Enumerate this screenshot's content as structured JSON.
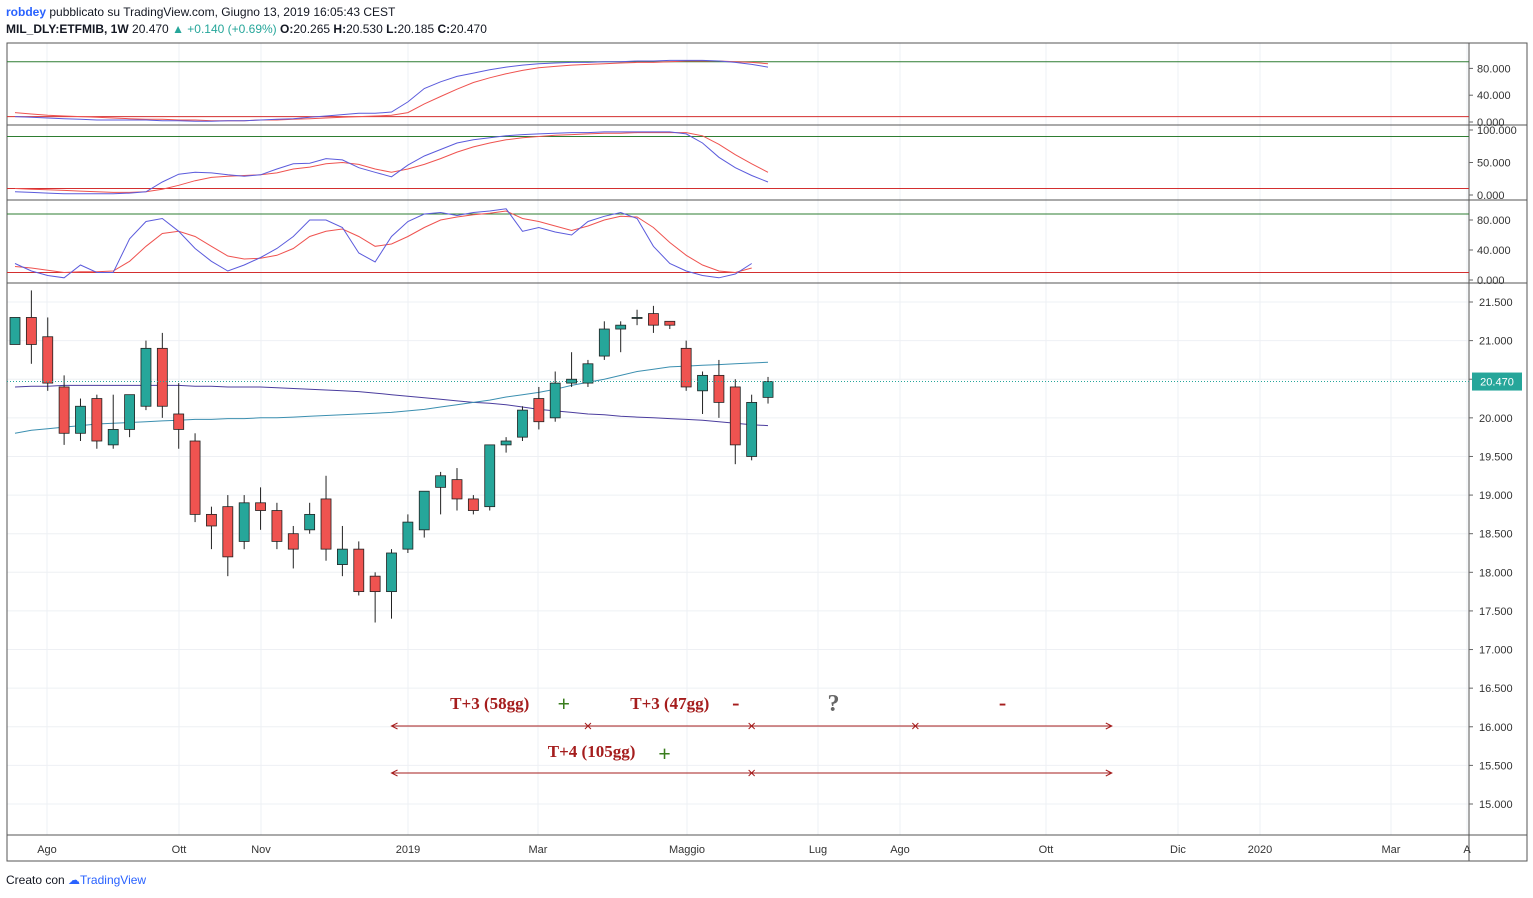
{
  "header": {
    "author": "robdey",
    "published": "pubblicato su TradingView.com, Giugno 13, 2019 16:05:43 CEST",
    "symbol": "MIL_DLY:ETFMIB, 1W",
    "last": "20.470",
    "change": "▲ +0.140 (+0.69%)",
    "open_label": "O:",
    "open": "20.265",
    "high_label": "H:",
    "high": "20.530",
    "low_label": "L:",
    "low": "20.185",
    "close_label": "C:",
    "close": "20.470"
  },
  "footer": {
    "created_with": "Creato con",
    "brand": "TradingView"
  },
  "colors": {
    "up": "#26a69a",
    "down": "#ef5350",
    "k_line": "#5b5bdc",
    "d_line": "#ef5350",
    "ma_long": "#4b3d9e",
    "ma_short": "#3b8fb0",
    "ob": "#2e7d32",
    "os": "#d32f2f",
    "annot": "#a51d1d",
    "plus": "#3a7d1e"
  },
  "chart_data": {
    "type": "candlestick",
    "interval": "1W",
    "x_ticks": [
      "Ago",
      "Ott",
      "Nov",
      "2019",
      "Mar",
      "Maggio",
      "Lug",
      "Ago",
      "Ott",
      "Dic",
      "2020",
      "Mar",
      "A"
    ],
    "price_axis": {
      "ylim": [
        14.6,
        21.9
      ],
      "ticks": [
        "21.500",
        "21.000",
        "20.500",
        "20.000",
        "19.500",
        "19.000",
        "18.500",
        "18.000",
        "17.500",
        "17.000",
        "16.500",
        "16.000",
        "15.500",
        "15.000"
      ],
      "last_price_label": "20.470"
    },
    "candles": [
      {
        "o": 20.95,
        "h": 21.3,
        "l": 20.95,
        "c": 21.3
      },
      {
        "o": 21.3,
        "h": 21.65,
        "l": 20.7,
        "c": 20.95
      },
      {
        "o": 21.05,
        "h": 21.3,
        "l": 20.35,
        "c": 20.45
      },
      {
        "o": 20.4,
        "h": 20.55,
        "l": 19.65,
        "c": 19.8
      },
      {
        "o": 19.8,
        "h": 20.25,
        "l": 19.7,
        "c": 20.15
      },
      {
        "o": 20.25,
        "h": 20.3,
        "l": 19.6,
        "c": 19.7
      },
      {
        "o": 19.65,
        "h": 20.3,
        "l": 19.6,
        "c": 19.85
      },
      {
        "o": 19.85,
        "h": 20.3,
        "l": 19.75,
        "c": 20.3
      },
      {
        "o": 20.15,
        "h": 21.0,
        "l": 20.1,
        "c": 20.9
      },
      {
        "o": 20.9,
        "h": 21.1,
        "l": 20.0,
        "c": 20.15
      },
      {
        "o": 20.05,
        "h": 20.45,
        "l": 19.6,
        "c": 19.85
      },
      {
        "o": 19.7,
        "h": 19.8,
        "l": 18.65,
        "c": 18.75
      },
      {
        "o": 18.75,
        "h": 18.85,
        "l": 18.3,
        "c": 18.6
      },
      {
        "o": 18.85,
        "h": 19.0,
        "l": 17.95,
        "c": 18.2
      },
      {
        "o": 18.4,
        "h": 19.0,
        "l": 18.3,
        "c": 18.9
      },
      {
        "o": 18.9,
        "h": 19.1,
        "l": 18.55,
        "c": 18.8
      },
      {
        "o": 18.8,
        "h": 18.9,
        "l": 18.3,
        "c": 18.4
      },
      {
        "o": 18.5,
        "h": 18.6,
        "l": 18.05,
        "c": 18.3
      },
      {
        "o": 18.55,
        "h": 18.9,
        "l": 18.5,
        "c": 18.75
      },
      {
        "o": 18.95,
        "h": 19.25,
        "l": 18.15,
        "c": 18.3
      },
      {
        "o": 18.1,
        "h": 18.6,
        "l": 17.95,
        "c": 18.3
      },
      {
        "o": 18.3,
        "h": 18.4,
        "l": 17.7,
        "c": 17.75
      },
      {
        "o": 17.95,
        "h": 18.0,
        "l": 17.35,
        "c": 17.75
      },
      {
        "o": 17.75,
        "h": 18.3,
        "l": 17.4,
        "c": 18.25
      },
      {
        "o": 18.3,
        "h": 18.75,
        "l": 18.25,
        "c": 18.65
      },
      {
        "o": 18.55,
        "h": 19.05,
        "l": 18.45,
        "c": 19.05
      },
      {
        "o": 19.1,
        "h": 19.3,
        "l": 18.75,
        "c": 19.25
      },
      {
        "o": 19.2,
        "h": 19.35,
        "l": 18.8,
        "c": 18.95
      },
      {
        "o": 18.95,
        "h": 19.0,
        "l": 18.75,
        "c": 18.8
      },
      {
        "o": 18.85,
        "h": 19.65,
        "l": 18.8,
        "c": 19.65
      },
      {
        "o": 19.65,
        "h": 19.75,
        "l": 19.55,
        "c": 19.7
      },
      {
        "o": 19.75,
        "h": 20.15,
        "l": 19.7,
        "c": 20.1
      },
      {
        "o": 20.25,
        "h": 20.4,
        "l": 19.85,
        "c": 19.95
      },
      {
        "o": 20.0,
        "h": 20.6,
        "l": 19.95,
        "c": 20.45
      },
      {
        "o": 20.45,
        "h": 20.85,
        "l": 20.4,
        "c": 20.5
      },
      {
        "o": 20.45,
        "h": 20.75,
        "l": 20.4,
        "c": 20.7
      },
      {
        "o": 20.8,
        "h": 21.25,
        "l": 20.75,
        "c": 21.15
      },
      {
        "o": 21.15,
        "h": 21.25,
        "l": 20.85,
        "c": 21.2
      },
      {
        "o": 21.3,
        "h": 21.4,
        "l": 21.2,
        "c": 21.3
      },
      {
        "o": 21.35,
        "h": 21.45,
        "l": 21.1,
        "c": 21.2
      },
      {
        "o": 21.25,
        "h": 21.25,
        "l": 21.15,
        "c": 21.2
      },
      {
        "o": 20.9,
        "h": 21.0,
        "l": 20.35,
        "c": 20.4
      },
      {
        "o": 20.35,
        "h": 20.6,
        "l": 20.05,
        "c": 20.55
      },
      {
        "o": 20.55,
        "h": 20.75,
        "l": 20.0,
        "c": 20.2
      },
      {
        "o": 20.4,
        "h": 20.5,
        "l": 19.4,
        "c": 19.65
      },
      {
        "o": 19.5,
        "h": 20.3,
        "l": 19.45,
        "c": 20.2
      },
      {
        "o": 20.265,
        "h": 20.53,
        "l": 20.185,
        "c": 20.47
      }
    ],
    "moving_averages": [
      {
        "values": [
          20.4,
          20.41,
          20.41,
          20.42,
          20.42,
          20.42,
          20.42,
          20.42,
          20.42,
          20.42,
          20.42,
          20.41,
          20.41,
          20.4,
          20.4,
          20.4,
          20.39,
          20.38,
          20.37,
          20.36,
          20.35,
          20.34,
          20.32,
          20.3,
          20.28,
          20.26,
          20.24,
          20.22,
          20.2,
          20.19,
          20.17,
          20.14,
          20.11,
          20.09,
          20.07,
          20.05,
          20.04,
          20.02,
          20.01,
          20.0,
          19.99,
          19.98,
          19.97,
          19.95,
          19.93,
          19.91,
          19.9
        ]
      },
      {
        "values": [
          19.8,
          19.84,
          19.86,
          19.88,
          19.9,
          19.92,
          19.93,
          19.94,
          19.95,
          19.96,
          19.97,
          19.98,
          19.98,
          19.99,
          19.99,
          20.0,
          20.0,
          20.01,
          20.02,
          20.03,
          20.04,
          20.05,
          20.06,
          20.07,
          20.09,
          20.11,
          20.14,
          20.17,
          20.2,
          20.23,
          20.27,
          20.3,
          20.33,
          20.37,
          20.42,
          20.46,
          20.5,
          20.55,
          20.6,
          20.63,
          20.66,
          20.67,
          20.68,
          20.69,
          20.7,
          20.71,
          20.72
        ]
      }
    ],
    "indicators": [
      {
        "ylim": [
          0,
          100
        ],
        "ticks": [
          "80.000",
          "40.000",
          "0.000"
        ],
        "levels": [
          90,
          8
        ],
        "k": [
          8,
          7,
          6,
          5,
          4,
          3,
          3,
          3,
          3,
          2,
          2,
          1,
          1,
          2,
          2,
          3,
          4,
          5,
          7,
          9,
          11,
          13,
          13,
          15,
          30,
          50,
          60,
          68,
          73,
          78,
          82,
          85,
          87,
          88,
          89,
          89,
          90,
          90,
          91,
          91,
          92,
          92,
          92,
          91,
          89,
          86,
          82
        ],
        "d": [
          14,
          12,
          10,
          9,
          8,
          7,
          6,
          5,
          4,
          4,
          3,
          3,
          2,
          2,
          2,
          3,
          3,
          4,
          5,
          6,
          7,
          8,
          9,
          10,
          14,
          27,
          38,
          49,
          59,
          66,
          72,
          77,
          81,
          83,
          85,
          86,
          87,
          88,
          89,
          89,
          90,
          91,
          91,
          91,
          90,
          89,
          87
        ]
      },
      {
        "ylim": [
          0,
          100
        ],
        "ticks": [
          "100.000",
          "50.000",
          "0.000"
        ],
        "levels": [
          90,
          10
        ],
        "k": [
          5,
          4,
          3,
          2,
          2,
          2,
          2,
          3,
          5,
          20,
          32,
          35,
          34,
          31,
          29,
          31,
          40,
          48,
          49,
          56,
          54,
          42,
          35,
          28,
          46,
          60,
          70,
          80,
          85,
          88,
          91,
          93,
          94,
          95,
          96,
          96,
          97,
          97,
          97,
          97,
          97,
          94,
          80,
          58,
          42,
          30,
          20
        ],
        "d": [
          10,
          9,
          8,
          7,
          6,
          5,
          4,
          4,
          5,
          9,
          15,
          22,
          27,
          29,
          30,
          31,
          34,
          40,
          43,
          48,
          50,
          47,
          40,
          35,
          40,
          47,
          56,
          66,
          74,
          80,
          85,
          88,
          90,
          92,
          93,
          94,
          95,
          95,
          96,
          96,
          96,
          96,
          91,
          78,
          62,
          48,
          35
        ]
      },
      {
        "ylim": [
          0,
          100
        ],
        "ticks": [
          "80.000",
          "40.000",
          "0.000"
        ],
        "levels": [
          88,
          10
        ],
        "k": [
          22,
          12,
          6,
          3,
          20,
          10,
          10,
          55,
          78,
          82,
          65,
          42,
          25,
          12,
          20,
          30,
          42,
          58,
          80,
          80,
          70,
          36,
          24,
          58,
          78,
          88,
          90,
          86,
          90,
          92,
          95,
          65,
          70,
          64,
          60,
          78,
          85,
          90,
          82,
          45,
          22,
          12,
          6,
          3,
          8,
          22
        ],
        "d": [
          18,
          16,
          13,
          10,
          11,
          11,
          12,
          25,
          45,
          62,
          65,
          58,
          45,
          32,
          28,
          29,
          33,
          42,
          58,
          65,
          68,
          58,
          45,
          48,
          58,
          70,
          80,
          84,
          87,
          89,
          92,
          82,
          78,
          72,
          66,
          72,
          80,
          85,
          84,
          70,
          50,
          33,
          20,
          12,
          10,
          16
        ]
      }
    ],
    "annotations": {
      "labels": [
        "T+3 (58gg)",
        "+",
        "T+3 (47gg)",
        "-",
        "?",
        "-",
        "T+4 (105gg)",
        "+"
      ],
      "line1_candles": [
        23,
        35,
        45,
        55,
        67
      ],
      "line2_candles": [
        23,
        45,
        67
      ]
    }
  }
}
